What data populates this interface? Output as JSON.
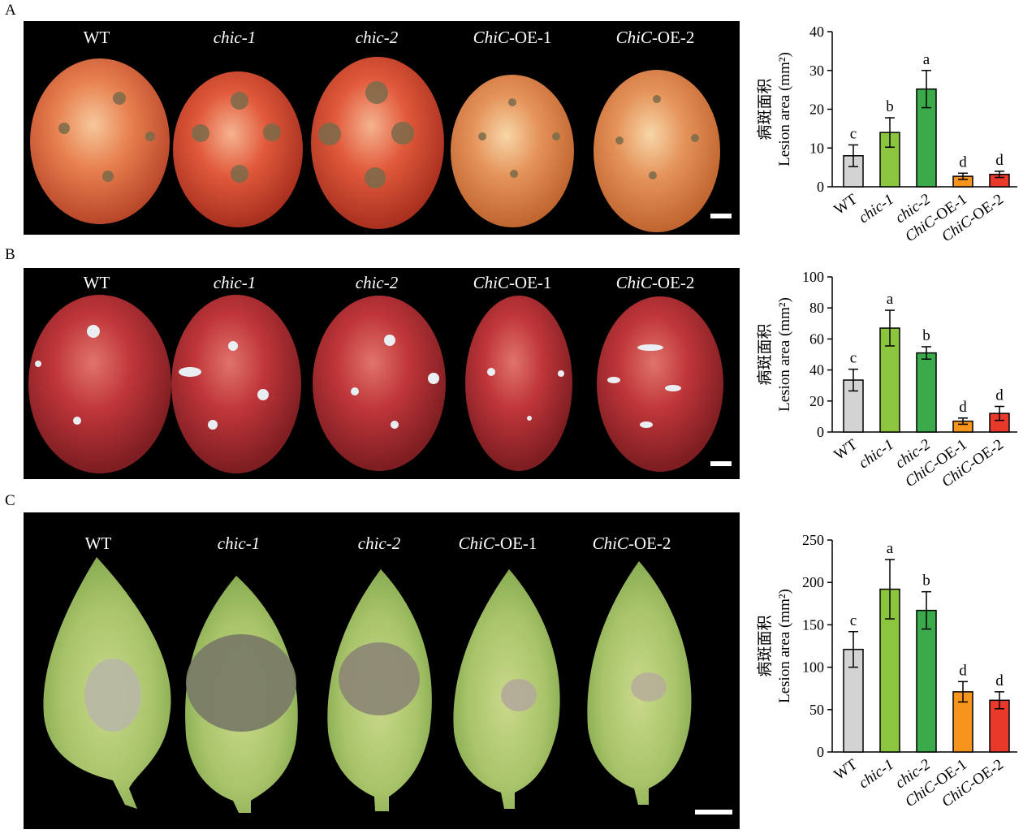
{
  "panels": [
    {
      "letter": "A",
      "photo_labels": [
        {
          "italic": "",
          "plain": "WT"
        },
        {
          "italic": "chic-1",
          "plain": ""
        },
        {
          "italic": "chic-2",
          "plain": ""
        },
        {
          "italic": "ChiC",
          "plain": "-OE-1"
        },
        {
          "italic": "ChiC",
          "plain": "-OE-2"
        }
      ]
    },
    {
      "letter": "B",
      "photo_labels": [
        {
          "italic": "",
          "plain": "WT"
        },
        {
          "italic": "chic-1",
          "plain": ""
        },
        {
          "italic": "chic-2",
          "plain": ""
        },
        {
          "italic": "ChiC",
          "plain": "-OE-1"
        },
        {
          "italic": "ChiC",
          "plain": "-OE-2"
        }
      ]
    },
    {
      "letter": "C",
      "photo_labels": [
        {
          "italic": "",
          "plain": "WT"
        },
        {
          "italic": "chic-1",
          "plain": ""
        },
        {
          "italic": "chic-2",
          "plain": ""
        },
        {
          "italic": "ChiC",
          "plain": "-OE-1"
        },
        {
          "italic": "ChiC",
          "plain": "-OE-2"
        }
      ]
    }
  ],
  "chart_data": [
    {
      "type": "bar",
      "panel": "A",
      "ylabel_cn": "病斑面积",
      "ylabel_en": "Lesion area (mm²)",
      "ylim": [
        0,
        40
      ],
      "yticks": [
        0,
        10,
        20,
        30,
        40
      ],
      "categories": [
        {
          "italic": "",
          "plain": "WT"
        },
        {
          "italic": "chic-1",
          "plain": ""
        },
        {
          "italic": "chic-2",
          "plain": ""
        },
        {
          "italic": "ChiC",
          "plain": "-OE-1"
        },
        {
          "italic": "ChiC",
          "plain": "-OE-2"
        }
      ],
      "values": [
        8,
        14,
        25.2,
        2.7,
        3.2
      ],
      "errors": [
        2.8,
        3.8,
        4.8,
        0.8,
        0.8
      ],
      "letters": [
        "c",
        "b",
        "a",
        "d",
        "d"
      ],
      "colors": [
        "#d3d3d3",
        "#8cc63e",
        "#3aaa4a",
        "#f7941d",
        "#e8392b"
      ]
    },
    {
      "type": "bar",
      "panel": "B",
      "ylabel_cn": "病斑面积",
      "ylabel_en": "Lesion area (mm²)",
      "ylim": [
        0,
        100
      ],
      "yticks": [
        0,
        20,
        40,
        60,
        80,
        100
      ],
      "categories": [
        {
          "italic": "",
          "plain": "WT"
        },
        {
          "italic": "chic-1",
          "plain": ""
        },
        {
          "italic": "chic-2",
          "plain": ""
        },
        {
          "italic": "ChiC",
          "plain": "-OE-1"
        },
        {
          "italic": "ChiC",
          "plain": "-OE-2"
        }
      ],
      "values": [
        33.5,
        67,
        51,
        7,
        12
      ],
      "errors": [
        7,
        11.5,
        4,
        2,
        4.5
      ],
      "letters": [
        "c",
        "a",
        "b",
        "d",
        "d"
      ],
      "colors": [
        "#d3d3d3",
        "#8cc63e",
        "#3aaa4a",
        "#f7941d",
        "#e8392b"
      ]
    },
    {
      "type": "bar",
      "panel": "C",
      "ylabel_cn": "病斑面积",
      "ylabel_en": "Lesion area (mm²)",
      "ylim": [
        0,
        250
      ],
      "yticks": [
        0,
        50,
        100,
        150,
        200,
        250
      ],
      "categories": [
        {
          "italic": "",
          "plain": "WT"
        },
        {
          "italic": "chic-1",
          "plain": ""
        },
        {
          "italic": "chic-2",
          "plain": ""
        },
        {
          "italic": "ChiC",
          "plain": "-OE-1"
        },
        {
          "italic": "ChiC",
          "plain": "-OE-2"
        }
      ],
      "values": [
        121,
        192,
        167,
        71,
        61
      ],
      "errors": [
        21,
        35,
        22,
        12,
        10
      ],
      "letters": [
        "c",
        "a",
        "b",
        "d",
        "d"
      ],
      "colors": [
        "#d3d3d3",
        "#8cc63e",
        "#3aaa4a",
        "#f7941d",
        "#e8392b"
      ]
    }
  ]
}
